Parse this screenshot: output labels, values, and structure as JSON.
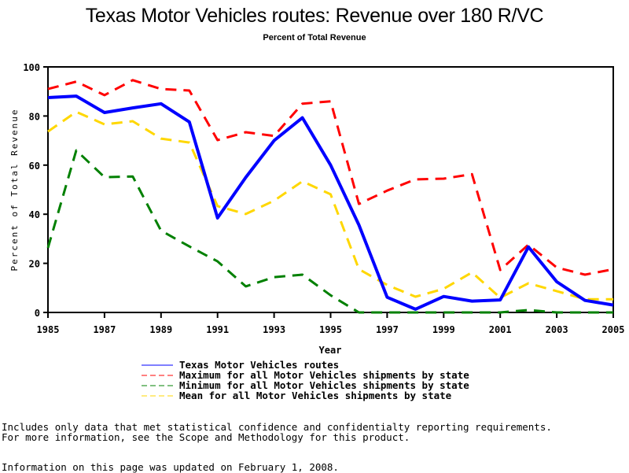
{
  "chart_data": {
    "type": "line",
    "title": "Texas Motor Vehicles routes: Revenue over 180 R/VC",
    "subtitle": "Percent of Total Revenue",
    "xlabel": "Year",
    "ylabel": "Percent of Total Revenue",
    "xlim": [
      1985,
      2005
    ],
    "ylim": [
      0,
      100
    ],
    "xticks": [
      1985,
      1987,
      1989,
      1991,
      1993,
      1995,
      1997,
      1999,
      2001,
      2003,
      2005
    ],
    "yticks": [
      0,
      20,
      40,
      60,
      80,
      100
    ],
    "grid": false,
    "legend_position": "bottom",
    "x": [
      1985,
      1986,
      1987,
      1988,
      1989,
      1990,
      1991,
      1992,
      1993,
      1994,
      1995,
      1996,
      1997,
      1998,
      1999,
      2000,
      2001,
      2002,
      2003,
      2004,
      2005
    ],
    "series": [
      {
        "name": "Texas Motor Vehicles routes",
        "color": "#0000ff",
        "style": "solid",
        "values": [
          87.5,
          88.1,
          81.4,
          83.3,
          85.0,
          77.6,
          38.5,
          55.0,
          70.0,
          79.3,
          60.0,
          35.6,
          6.2,
          1.3,
          6.5,
          4.6,
          5.1,
          26.7,
          12.5,
          4.9,
          3.0
        ]
      },
      {
        "name": "Maximum for all Motor Vehicles shipments by state",
        "color": "#ff0000",
        "style": "dashed",
        "values": [
          91.0,
          94.0,
          88.5,
          94.6,
          91.0,
          90.4,
          70.2,
          73.4,
          71.9,
          85.0,
          86.0,
          44.2,
          49.6,
          54.2,
          54.5,
          56.3,
          17.3,
          27.6,
          18.3,
          15.4,
          17.6
        ]
      },
      {
        "name": "Minimum for all Motor Vehicles shipments by state",
        "color": "#008000",
        "style": "dashed",
        "values": [
          26.3,
          66.0,
          55.1,
          55.4,
          33.3,
          26.9,
          20.8,
          10.6,
          14.4,
          15.4,
          7.0,
          0.0,
          0.0,
          0.0,
          0.0,
          0.0,
          0.0,
          1.0,
          0.0,
          0.0,
          0.0
        ]
      },
      {
        "name": "Mean for all Motor Vehicles shipments by state",
        "color": "#ffd700",
        "style": "dashed",
        "values": [
          73.7,
          81.7,
          76.6,
          77.9,
          70.8,
          69.2,
          43.3,
          40.1,
          45.5,
          53.4,
          48.1,
          17.6,
          11.2,
          6.4,
          9.6,
          16.3,
          6.0,
          11.9,
          8.7,
          5.4,
          5.4
        ]
      }
    ]
  },
  "footnotes": {
    "line1": "Includes only data that met statistical confidence and confidentialty reporting requirements.",
    "line2": "For more information, see the Scope and Methodology for this product.",
    "updated": "Information on this page was updated on February 1, 2008."
  }
}
